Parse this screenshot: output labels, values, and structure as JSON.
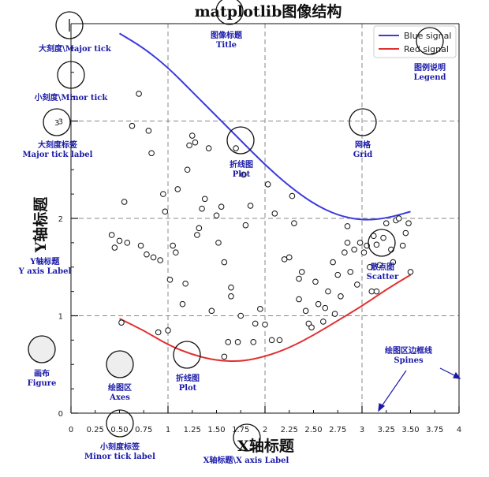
{
  "title": "matplotlib图像结构",
  "xlabel": "X轴标题",
  "ylabel": "Y轴标题",
  "legend": {
    "blue": "Blue signal",
    "red": "Red signal"
  },
  "colors": {
    "blue": "#3b3bdc",
    "red": "#e03030",
    "annotation": "#1a1aa8",
    "grid": "#888888"
  },
  "annotations": {
    "major_tick": "大刻度\\Major tick",
    "minor_tick": "小刻度\\Minor tick",
    "major_tick_label_cn": "大刻度标签",
    "major_tick_label_en": "Major tick label",
    "title_cn": "图像标题",
    "title_en": "Title",
    "legend_cn": "图例说明",
    "legend_en": "Legend",
    "line_cn": "折线图",
    "line_en": "Plot",
    "grid_cn": "网格",
    "grid_en": "Grid",
    "y_label_cn": "Y轴标题",
    "y_label_en": "Y axis Label",
    "scatter_cn": "散点图",
    "scatter_en": "Scatter",
    "figure_cn": "画布",
    "figure_en": "Figure",
    "axes_cn": "绘图区",
    "axes_en": "Axes",
    "plot2_cn": "折线图",
    "plot2_en": "Plot",
    "spines_cn": "绘图区边框线",
    "spines_en": "Spines",
    "minor_label_cn": "小刻度标签",
    "minor_label_en": "Minor tick label",
    "x_label": "X轴标题\\X axis Label"
  },
  "chart_data": {
    "type": "line",
    "xlim": [
      0,
      4
    ],
    "ylim": [
      0,
      4
    ],
    "grid": true,
    "legend_position": "top-right",
    "x_major_ticks": [
      "0",
      "1",
      "2",
      "3",
      "4"
    ],
    "x_minor_ticks": [
      "0.25",
      "0.50",
      "0.75",
      "1.25",
      "1.50",
      "1.75",
      "2.25",
      "2.50",
      "2.75",
      "3.25",
      "3.50",
      "3.75"
    ],
    "y_major_ticks": [
      "0",
      "1",
      "2",
      "3"
    ],
    "series": [
      {
        "name": "Blue signal",
        "color": "#3b3bdc",
        "x": [
          0.5,
          0.75,
          1.0,
          1.25,
          1.5,
          1.75,
          2.0,
          2.25,
          2.5,
          2.75,
          3.0,
          3.25,
          3.5
        ],
        "y": [
          3.9,
          3.75,
          3.55,
          3.3,
          3.05,
          2.8,
          2.55,
          2.33,
          2.15,
          2.03,
          1.98,
          2.0,
          2.07
        ]
      },
      {
        "name": "Red signal",
        "color": "#e03030",
        "x": [
          0.5,
          0.75,
          1.0,
          1.25,
          1.5,
          1.75,
          2.0,
          2.25,
          2.5,
          2.75,
          3.0,
          3.25,
          3.5
        ],
        "y": [
          0.97,
          0.85,
          0.7,
          0.6,
          0.54,
          0.53,
          0.58,
          0.67,
          0.8,
          0.95,
          1.1,
          1.27,
          1.42
        ]
      }
    ],
    "scatter": {
      "x": [
        0.42,
        0.45,
        0.5,
        0.52,
        0.55,
        0.63,
        0.7,
        0.72,
        0.78,
        0.8,
        0.83,
        0.85,
        0.9,
        0.92,
        0.95,
        0.97,
        1.0,
        1.02,
        1.05,
        1.08,
        1.1,
        1.15,
        1.18,
        1.2,
        1.25,
        1.28,
        1.3,
        1.32,
        1.35,
        1.38,
        1.42,
        1.45,
        1.5,
        1.52,
        1.55,
        1.58,
        1.62,
        1.65,
        1.7,
        1.72,
        1.75,
        1.78,
        1.8,
        1.85,
        1.88,
        1.9,
        1.95,
        2.0,
        2.03,
        2.07,
        2.1,
        2.15,
        2.2,
        2.25,
        2.28,
        2.3,
        2.35,
        2.38,
        2.42,
        2.45,
        2.48,
        2.52,
        2.55,
        2.6,
        2.62,
        2.65,
        2.7,
        2.72,
        2.75,
        2.78,
        2.82,
        2.85,
        2.88,
        2.92,
        2.95,
        2.98,
        3.02,
        3.05,
        3.08,
        3.1,
        3.12,
        3.15,
        3.18,
        3.22,
        3.25,
        3.3,
        3.32,
        3.35,
        3.38,
        3.42,
        3.45,
        3.48,
        3.5,
        1.22,
        1.58,
        2.85,
        3.15,
        2.35,
        0.58,
        1.65
      ],
      "y": [
        1.83,
        1.7,
        1.77,
        0.93,
        2.17,
        2.95,
        3.28,
        1.72,
        1.63,
        2.9,
        2.67,
        1.6,
        0.83,
        1.57,
        2.25,
        2.07,
        0.85,
        1.37,
        1.72,
        1.65,
        2.3,
        1.12,
        1.33,
        2.5,
        2.85,
        2.78,
        1.83,
        1.9,
        2.1,
        2.2,
        2.72,
        1.05,
        2.03,
        1.75,
        2.12,
        1.55,
        0.73,
        1.29,
        2.72,
        0.73,
        1.0,
        2.45,
        1.93,
        2.13,
        0.73,
        0.92,
        1.07,
        0.91,
        2.35,
        0.75,
        2.05,
        0.75,
        1.58,
        1.6,
        2.23,
        1.95,
        1.17,
        1.45,
        1.05,
        0.92,
        0.88,
        1.35,
        1.12,
        0.94,
        1.08,
        1.25,
        1.55,
        1.02,
        1.42,
        1.2,
        1.65,
        1.75,
        1.45,
        1.68,
        1.32,
        1.75,
        1.65,
        1.72,
        1.5,
        1.25,
        1.82,
        1.73,
        1.52,
        1.8,
        1.95,
        1.68,
        1.55,
        1.98,
        2.0,
        1.72,
        1.85,
        1.95,
        1.45,
        2.75,
        0.58,
        1.92,
        1.25,
        1.38,
        1.75,
        1.2
      ]
    }
  }
}
